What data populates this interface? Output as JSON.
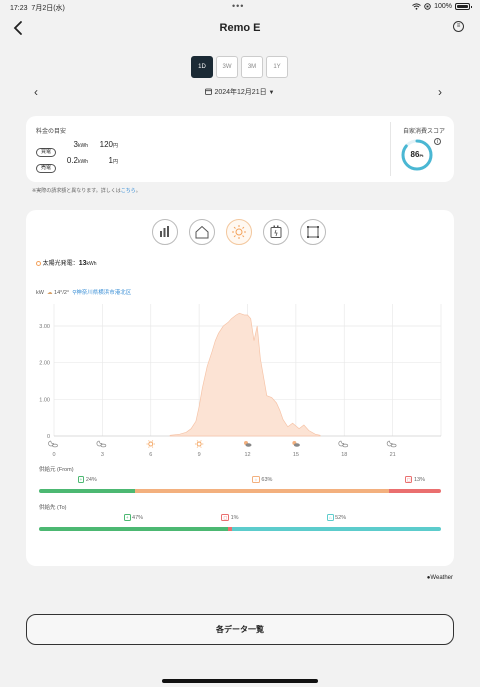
{
  "status_bar": {
    "time": "17:23",
    "date": "7月2日(水)",
    "dots": "•••",
    "battery": "100%"
  },
  "nav": {
    "title": "Remo E",
    "back_icon": "chevron-left-icon",
    "menu_icon": "menu-circle-icon"
  },
  "period_tabs": [
    {
      "label": "1D",
      "active": true
    },
    {
      "label": "3W",
      "active": false
    },
    {
      "label": "3M",
      "active": false
    },
    {
      "label": "1Y",
      "active": false
    }
  ],
  "date_nav": {
    "label": "2024年12月21日",
    "prev": "‹",
    "next": "›"
  },
  "cost": {
    "title": "料金の目安",
    "rows": [
      {
        "tag": "買電",
        "kwh": "3",
        "kwh_unit": "kWh",
        "yen": "120",
        "yen_unit": "円"
      },
      {
        "tag": "売電",
        "kwh": "0.2",
        "kwh_unit": "kWh",
        "yen": "1",
        "yen_unit": "円"
      }
    ],
    "score_title": "自家消費スコア",
    "score_value": "86",
    "score_unit": "Pt",
    "score_fraction": 0.86
  },
  "note": {
    "text": "※実際の請求額と異なります。詳しくは",
    "link": "こちら",
    "tail": "。"
  },
  "chart_section": {
    "icon_tabs": [
      "bar-chart-icon",
      "home-icon",
      "sun-icon",
      "battery-icon",
      "grid-icon"
    ],
    "active_tab": 2,
    "generation_label": "太陽光発電：",
    "generation_value": "13",
    "generation_unit": "kWh",
    "unit_label": "kW",
    "temperature": "14°/2°",
    "location": "神奈川県横浜市港北区"
  },
  "chart_data": {
    "type": "area",
    "xlabel": "",
    "ylabel": "kW",
    "x_ticks": [
      "0",
      "3",
      "6",
      "9",
      "12",
      "15",
      "18",
      "21"
    ],
    "y_ticks": [
      "0",
      "1.00",
      "2.00",
      "3.00"
    ],
    "xlim": [
      0,
      24
    ],
    "ylim": [
      0,
      3.6
    ],
    "series": [
      {
        "x": [
          7.2,
          7.8,
          8.2,
          8.5,
          8.8,
          9.0,
          9.2,
          9.5,
          9.8,
          10.0,
          10.2,
          10.5,
          10.8,
          11.0,
          11.3,
          11.5,
          11.8,
          12.0,
          12.2,
          12.4,
          12.6,
          12.8,
          13.0,
          13.2,
          13.5,
          13.8,
          14.0,
          14.2,
          14.5,
          14.8,
          15.2,
          15.5,
          15.8,
          16.2,
          16.5
        ],
        "y": [
          0.02,
          0.05,
          0.1,
          0.2,
          0.4,
          0.8,
          1.3,
          1.9,
          2.3,
          2.6,
          2.8,
          3.0,
          3.1,
          3.2,
          3.3,
          3.35,
          3.3,
          3.3,
          3.2,
          2.6,
          3.0,
          2.1,
          1.6,
          1.1,
          1.05,
          0.9,
          0.7,
          0.45,
          0.25,
          0.35,
          0.2,
          0.3,
          0.15,
          0.05,
          0.02
        ]
      }
    ],
    "fill_color": "#fce3d4",
    "line_color": "#f6c4a8",
    "weather_icons": [
      {
        "x": 0,
        "icon": "moon-cloud-icon"
      },
      {
        "x": 3,
        "icon": "moon-cloud-icon"
      },
      {
        "x": 6,
        "icon": "sun-icon"
      },
      {
        "x": 9,
        "icon": "sun-icon"
      },
      {
        "x": 12,
        "icon": "sun-cloud-icon"
      },
      {
        "x": 15,
        "icon": "sun-cloud-icon"
      },
      {
        "x": 18,
        "icon": "moon-cloud-icon"
      },
      {
        "x": 21,
        "icon": "moon-cloud-icon"
      }
    ]
  },
  "supply_from": {
    "title": "供給元 (From)",
    "segments": [
      {
        "icon": "battery-icon",
        "label": "24%",
        "value": 0.24,
        "color": "#4cb872"
      },
      {
        "icon": "sun-icon",
        "label": "63%",
        "value": 0.63,
        "color": "#f3b07e"
      },
      {
        "icon": "grid-icon",
        "label": "13%",
        "value": 0.13,
        "color": "#ea6f6f"
      }
    ]
  },
  "supply_to": {
    "title": "供給先 (To)",
    "segments": [
      {
        "icon": "battery-icon",
        "label": "47%",
        "value": 0.47,
        "color": "#4cb872"
      },
      {
        "icon": "grid-icon",
        "label": "1%",
        "value": 0.01,
        "color": "#ea6f6f"
      },
      {
        "icon": "home-icon",
        "label": "52%",
        "value": 0.52,
        "color": "#5ccccc"
      }
    ]
  },
  "weather_credit": "Weather",
  "all_data_button": "各データ一覧",
  "colors": {
    "accent": "#1b2a35",
    "link": "#3a8fd6",
    "score_ring": "#4ab7d3",
    "sun": "#f3a15a"
  }
}
